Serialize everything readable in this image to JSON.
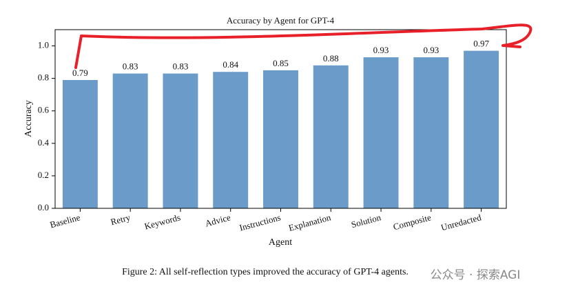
{
  "chart_data": {
    "type": "bar",
    "title": "Accuracy by Agent for GPT-4",
    "x_label": "Agent",
    "y_label": "Accuracy",
    "categories": [
      "Baseline",
      "Retry",
      "Keywords",
      "Advice",
      "Instructions",
      "Explanation",
      "Solution",
      "Composite",
      "Unredacted"
    ],
    "values": [
      0.79,
      0.83,
      0.83,
      0.84,
      0.85,
      0.88,
      0.93,
      0.93,
      0.97
    ],
    "color": "#6a9bc9",
    "ylim": [
      0,
      1.1
    ],
    "yticks": [
      {
        "value": 0,
        "label": "0.0"
      },
      0.2,
      0.4,
      0.6,
      0.8,
      {
        "value": 1,
        "label": "1.0"
      }
    ],
    "grid": false
  },
  "caption": "Figure 2: All self-reflection types improved the accuracy of GPT-4 agents.",
  "watermark": "公众号 · 探索AGI"
}
